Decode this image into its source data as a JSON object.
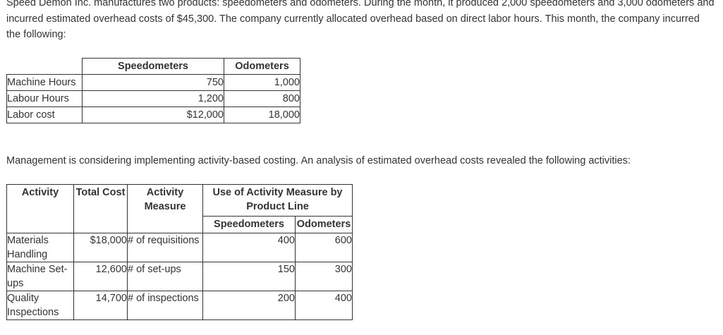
{
  "intro_text": "Speed Demon Inc. manufactures two products: speedometers and odometers. During the month, it produced 2,000 speedometers and 3,000 odometers and incurred estimated overhead costs of $45,300. The company currently allocated overhead based on direct labor hours. This month, the company incurred the following:",
  "table1": {
    "headers": [
      "",
      "Speedometers",
      "Odometers"
    ],
    "rows": [
      {
        "label": "Machine Hours",
        "speedometers": "750",
        "odometers": "1,000"
      },
      {
        "label": "Labour Hours",
        "speedometers": "1,200",
        "odometers": "800"
      },
      {
        "label": "Labor cost",
        "speedometers": "$12,000",
        "odometers": "18,000"
      }
    ]
  },
  "middle_text": "Management is considering implementing activity-based costing. An analysis of estimated overhead costs revealed the following activities:",
  "table2": {
    "headers": {
      "activity": "Activity",
      "total_cost": "Total Cost",
      "activity_measure": "Activity Measure",
      "use_of_activity": "Use of Activity Measure by Product Line",
      "speedometers": "Speedometers",
      "odometers": "Odometers"
    },
    "rows": [
      {
        "activity": "Materials Handling",
        "total_cost": "$18,000",
        "measure": "# of requisitions",
        "speedometers": "400",
        "odometers": "600"
      },
      {
        "activity": "Machine Set-ups",
        "total_cost": "12,600",
        "measure": "# of set-ups",
        "speedometers": "150",
        "odometers": "300"
      },
      {
        "activity": "Quality Inspections",
        "total_cost": "14,700",
        "measure": "# of inspections",
        "speedometers": "200",
        "odometers": "400"
      }
    ]
  }
}
